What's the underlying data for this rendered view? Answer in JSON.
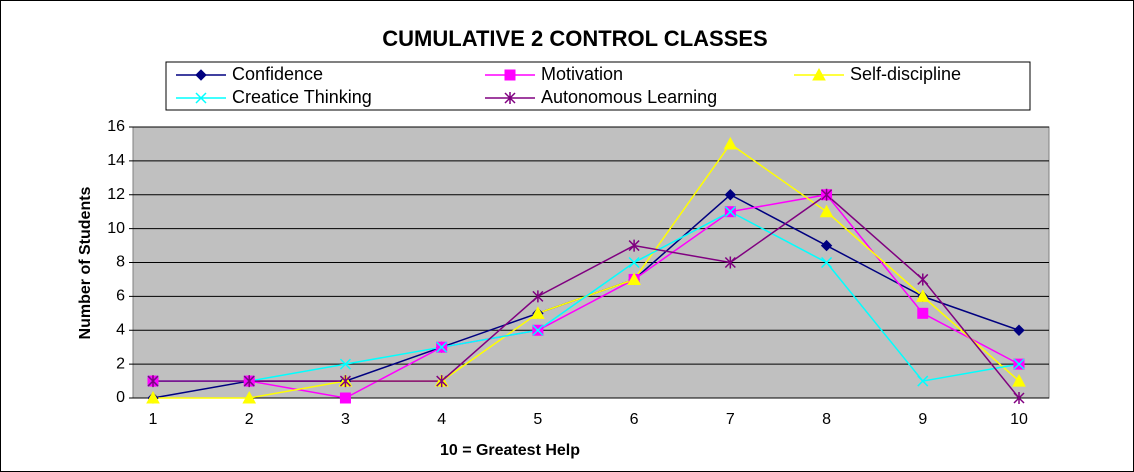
{
  "chart_data": {
    "type": "line",
    "title": "CUMULATIVE 2 CONTROL CLASSES",
    "xlabel": "10 = Greatest Help",
    "ylabel": "Number of Students",
    "categories": [
      "1",
      "2",
      "3",
      "4",
      "5",
      "6",
      "7",
      "8",
      "9",
      "10"
    ],
    "series": [
      {
        "name": "Confidence",
        "color": "#000080",
        "marker": "diamond",
        "values": [
          0,
          1,
          1,
          3,
          5,
          7,
          12,
          9,
          6,
          4
        ]
      },
      {
        "name": "Motivation",
        "color": "#ff00ff",
        "marker": "square",
        "values": [
          1,
          1,
          0,
          3,
          4,
          7,
          11,
          12,
          5,
          2
        ]
      },
      {
        "name": "Self-discipline",
        "color": "#ffff00",
        "marker": "triangle",
        "values": [
          0,
          0,
          1,
          1,
          5,
          7,
          15,
          11,
          6,
          1
        ]
      },
      {
        "name": "Creatice Thinking",
        "color": "#00ffff",
        "marker": "x",
        "values": [
          1,
          1,
          2,
          3,
          4,
          8,
          11,
          8,
          1,
          2
        ]
      },
      {
        "name": "Autonomous Learning",
        "color": "#800080",
        "marker": "star",
        "values": [
          1,
          1,
          1,
          1,
          6,
          9,
          8,
          12,
          7,
          0
        ]
      }
    ],
    "ylim": [
      0,
      16
    ],
    "yticks": [
      0,
      2,
      4,
      6,
      8,
      10,
      12,
      14,
      16
    ],
    "grid": true,
    "legend": "top"
  }
}
